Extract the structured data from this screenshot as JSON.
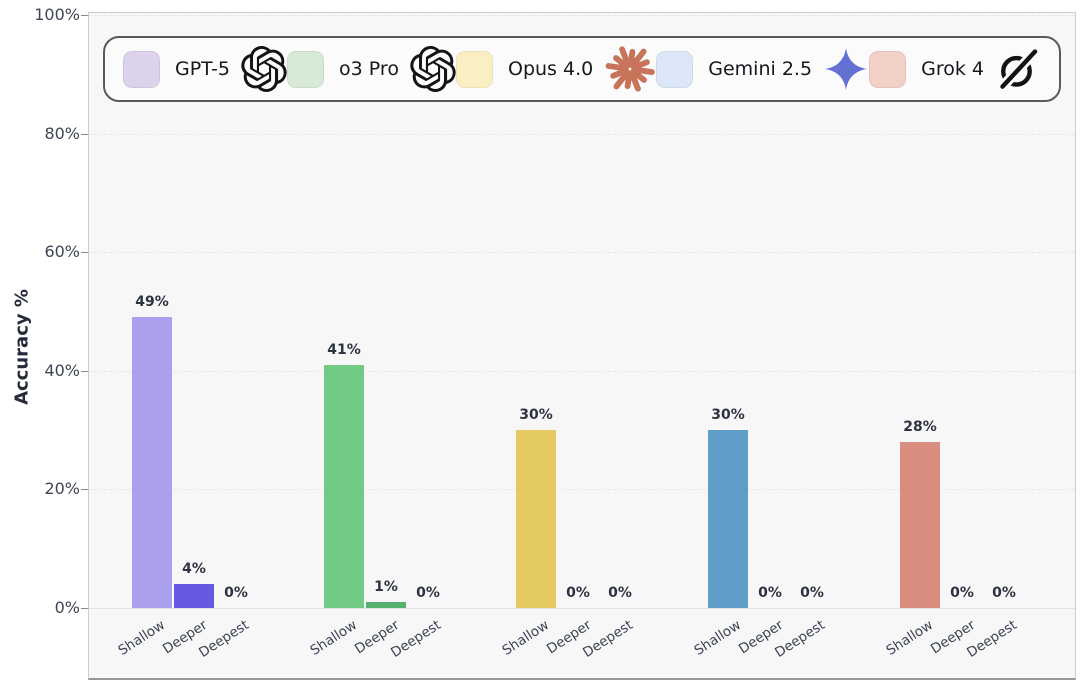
{
  "page": {
    "background": "#ffffff",
    "plot_background": "#f7f7f8"
  },
  "legend": {
    "items": [
      {
        "label": "GPT-5",
        "swatch_color": "#dcd2ec",
        "icon": "openai",
        "icon_color": "#141414"
      },
      {
        "label": "o3 Pro",
        "swatch_color": "#d7e9d7",
        "icon": "openai",
        "icon_color": "#141414"
      },
      {
        "label": "Opus 4.0",
        "swatch_color": "#faefc3",
        "icon": "anthropic",
        "icon_color": "#c8745a"
      },
      {
        "label": "Gemini 2.5",
        "swatch_color": "#dbe7f7",
        "icon": "gemini",
        "icon_color": "#6470d4"
      },
      {
        "label": "Grok 4",
        "swatch_color": "#f2cfc7",
        "icon": "grok",
        "icon_color": "#141414"
      }
    ]
  },
  "chart_data": {
    "type": "bar",
    "title": "",
    "ylabel": "Accuracy %",
    "xlabel": "",
    "ylim": [
      0,
      100
    ],
    "yticks": [
      0,
      20,
      40,
      60,
      80,
      100
    ],
    "ytick_labels": [
      "0%",
      "20%",
      "40%",
      "60%",
      "80%",
      "100%"
    ],
    "grid": true,
    "legend_position": "top",
    "categories": [
      "Shallow",
      "Deeper",
      "Deepest"
    ],
    "series": [
      {
        "name": "GPT-5",
        "values": [
          49,
          4,
          0
        ],
        "value_labels": [
          "49%",
          "4%",
          "0%"
        ],
        "bar_colors": [
          "#aba0ee",
          "#675ae0",
          "#aba0ee"
        ]
      },
      {
        "name": "o3 Pro",
        "values": [
          41,
          1,
          0
        ],
        "value_labels": [
          "41%",
          "1%",
          "0%"
        ],
        "bar_colors": [
          "#70ca85",
          "#55b16d",
          "#70ca85"
        ]
      },
      {
        "name": "Opus 4.0",
        "values": [
          30,
          0,
          0
        ],
        "value_labels": [
          "30%",
          "0%",
          "0%"
        ],
        "bar_colors": [
          "#e5ca5f",
          "#e5ca5f",
          "#e5ca5f"
        ]
      },
      {
        "name": "Gemini 2.5",
        "values": [
          30,
          0,
          0
        ],
        "value_labels": [
          "30%",
          "0%",
          "0%"
        ],
        "bar_colors": [
          "#5f9ec9",
          "#5f9ec9",
          "#5f9ec9"
        ]
      },
      {
        "name": "Grok 4",
        "values": [
          28,
          0,
          0
        ],
        "value_labels": [
          "28%",
          "0%",
          "0%"
        ],
        "bar_colors": [
          "#d98d7e",
          "#d98d7e",
          "#d98d7e"
        ]
      }
    ]
  }
}
